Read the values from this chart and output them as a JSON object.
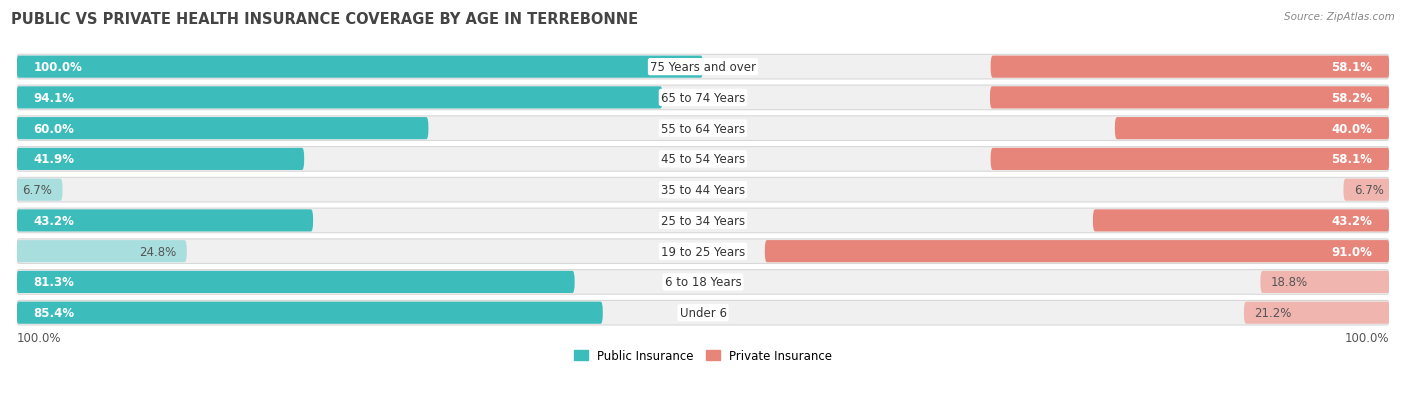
{
  "title": "PUBLIC VS PRIVATE HEALTH INSURANCE COVERAGE BY AGE IN TERREBONNE",
  "source": "Source: ZipAtlas.com",
  "categories": [
    "Under 6",
    "6 to 18 Years",
    "19 to 25 Years",
    "25 to 34 Years",
    "35 to 44 Years",
    "45 to 54 Years",
    "55 to 64 Years",
    "65 to 74 Years",
    "75 Years and over"
  ],
  "public_values": [
    85.4,
    81.3,
    24.8,
    43.2,
    6.7,
    41.9,
    60.0,
    94.1,
    100.0
  ],
  "private_values": [
    21.2,
    18.8,
    91.0,
    43.2,
    6.7,
    58.1,
    40.0,
    58.2,
    58.1
  ],
  "public_color_strong": "#3dbcbc",
  "public_color_light": "#a8dede",
  "private_color_strong": "#e8857a",
  "private_color_light": "#f0b5af",
  "row_bg": "#f0f0f0",
  "row_border": "#e0e0e0",
  "title_fontsize": 10.5,
  "label_fontsize": 8.5,
  "bar_label_fontsize": 8.5,
  "legend_fontsize": 8.5,
  "source_fontsize": 7.5,
  "max_value": 100.0,
  "strong_threshold_pub": 40.0,
  "strong_threshold_priv": 25.0
}
